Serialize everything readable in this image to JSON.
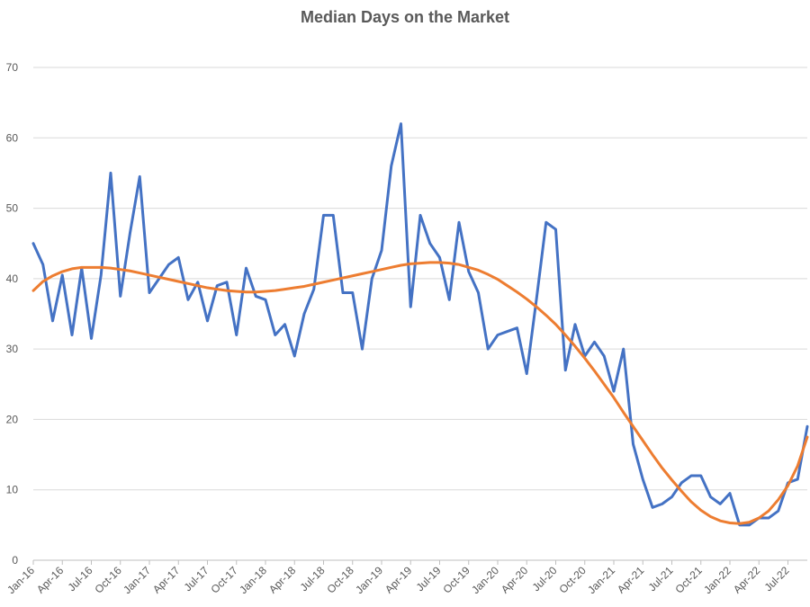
{
  "chart_data": {
    "type": "line",
    "title": "Median Days on the Market",
    "xlabel": "",
    "ylabel": "",
    "ylim": [
      0,
      70
    ],
    "yticks": [
      0,
      10,
      20,
      30,
      40,
      50,
      60,
      70
    ],
    "grid": true,
    "legend": "none",
    "x_tick_labels": [
      "Jan-16",
      "Apr-16",
      "Jul-16",
      "Oct-16",
      "Jan-17",
      "Apr-17",
      "Jul-17",
      "Oct-17",
      "Jan-18",
      "Apr-18",
      "Jul-18",
      "Oct-18",
      "Jan-19",
      "Apr-19",
      "Jul-19",
      "Oct-19",
      "Jan-20",
      "Apr-20",
      "Jul-20",
      "Oct-20",
      "Jan-21",
      "Apr-21",
      "Jul-21",
      "Oct-21",
      "Jan-22",
      "Apr-22",
      "Jul-22"
    ],
    "x": [
      "Jan-16",
      "Feb-16",
      "Mar-16",
      "Apr-16",
      "May-16",
      "Jun-16",
      "Jul-16",
      "Aug-16",
      "Sep-16",
      "Oct-16",
      "Nov-16",
      "Dec-16",
      "Jan-17",
      "Feb-17",
      "Mar-17",
      "Apr-17",
      "May-17",
      "Jun-17",
      "Jul-17",
      "Aug-17",
      "Sep-17",
      "Oct-17",
      "Nov-17",
      "Dec-17",
      "Jan-18",
      "Feb-18",
      "Mar-18",
      "Apr-18",
      "May-18",
      "Jun-18",
      "Jul-18",
      "Aug-18",
      "Sep-18",
      "Oct-18",
      "Nov-18",
      "Dec-18",
      "Jan-19",
      "Feb-19",
      "Mar-19",
      "Apr-19",
      "May-19",
      "Jun-19",
      "Jul-19",
      "Aug-19",
      "Sep-19",
      "Oct-19",
      "Nov-19",
      "Dec-19",
      "Jan-20",
      "Feb-20",
      "Mar-20",
      "Apr-20",
      "May-20",
      "Jun-20",
      "Jul-20",
      "Aug-20",
      "Sep-20",
      "Oct-20",
      "Nov-20",
      "Dec-20",
      "Jan-21",
      "Feb-21",
      "Mar-21",
      "Apr-21",
      "May-21",
      "Jun-21",
      "Jul-21",
      "Aug-21",
      "Sep-21",
      "Oct-21",
      "Nov-21",
      "Dec-21",
      "Jan-22",
      "Feb-22",
      "Mar-22",
      "Apr-22",
      "May-22",
      "Jun-22",
      "Jul-22",
      "Aug-22",
      "Sep-22"
    ],
    "series": [
      {
        "color": "#4472C4",
        "values": [
          45,
          42,
          34,
          40.5,
          32,
          41.5,
          31.5,
          40.5,
          55,
          37.5,
          46.5,
          54.5,
          38,
          40,
          42,
          43,
          37,
          39.5,
          34,
          39,
          39.5,
          32,
          41.5,
          37.5,
          37,
          32,
          33.5,
          29,
          35,
          38.5,
          49,
          49,
          38,
          38,
          30,
          40,
          44,
          56,
          62,
          36,
          49,
          45,
          43,
          37,
          48,
          41,
          38,
          30,
          32,
          32.5,
          33,
          26.5,
          37,
          48,
          47,
          27,
          33.5,
          29,
          31,
          29,
          24,
          30,
          16.5,
          11.5,
          7.5,
          8,
          9,
          11,
          12,
          12,
          9,
          8,
          9.5,
          5,
          5,
          6,
          6,
          7,
          11,
          11.5,
          19
        ]
      },
      {
        "color": "#ED7D31",
        "values": [
          38.3,
          39.6,
          40.4,
          41,
          41.4,
          41.6,
          41.6,
          41.6,
          41.5,
          41.3,
          41.1,
          40.8,
          40.5,
          40.2,
          39.9,
          39.6,
          39.3,
          39,
          38.7,
          38.5,
          38.3,
          38.2,
          38.1,
          38.1,
          38.2,
          38.3,
          38.5,
          38.7,
          38.9,
          39.2,
          39.5,
          39.8,
          40.1,
          40.4,
          40.7,
          41,
          41.3,
          41.6,
          41.9,
          42.1,
          42.2,
          42.3,
          42.3,
          42.2,
          42,
          41.6,
          41.2,
          40.6,
          39.9,
          39,
          38.1,
          37.1,
          36,
          34.8,
          33.5,
          32,
          30.4,
          28.7,
          26.9,
          25,
          23.1,
          21,
          19,
          17,
          15,
          13.1,
          11.4,
          9.8,
          8.3,
          7.1,
          6.2,
          5.6,
          5.3,
          5.2,
          5.4,
          6,
          7,
          8.6,
          10.6,
          13.4,
          17.5
        ]
      }
    ]
  }
}
